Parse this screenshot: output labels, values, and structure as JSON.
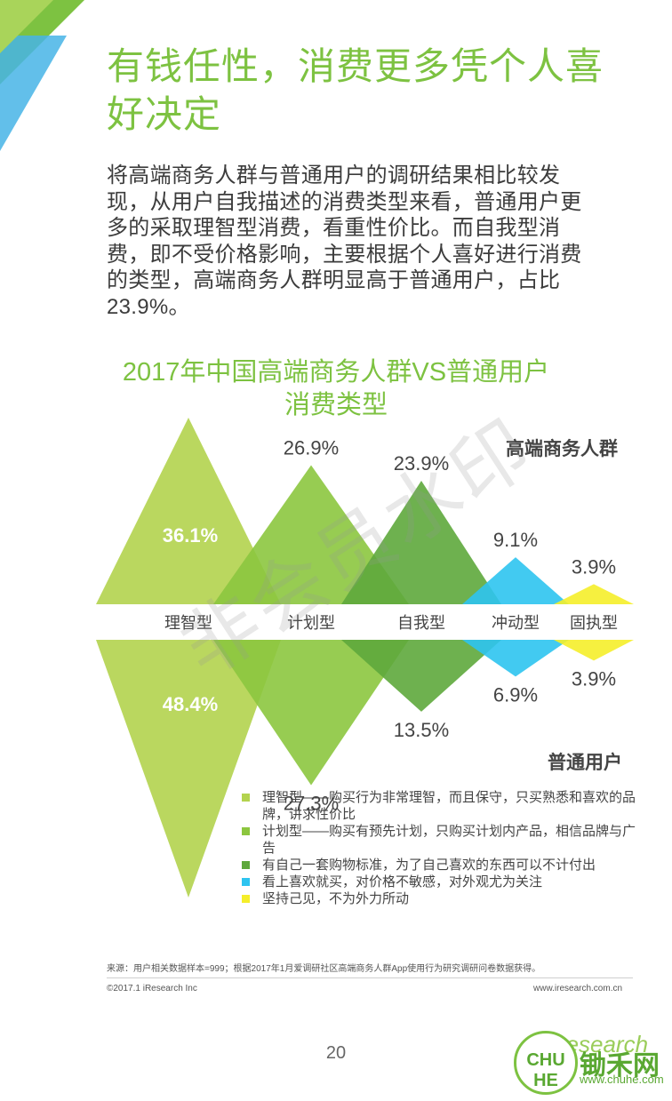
{
  "page": {
    "title_line1": "有钱任性，消费更多凭个人喜",
    "title_line2": "好决定",
    "intro_lines": [
      "将高端商务人群与普通用户的调研结果相比较发",
      "现，从用户自我描述的消费类型来看，普通用户更",
      "多的采取理智型消费，看重性价比。而自我型消",
      "费，即不受价格影响，主要根据个人喜好进行消费",
      "的类型，高端商务人群明显高于普通用户，占比",
      "23.9%。"
    ],
    "watermark": "非会员水印",
    "source": "来源：用户相关数据样本=999；根据2017年1月爱调研社区高端商务人群App使用行为研究调研问卷数据获得。",
    "copyright": "©2017.1 iResearch Inc",
    "website": "www.iresearch.com.cn",
    "page_number": "20",
    "brand": "iResearch",
    "logo_seal": "CHU HE",
    "logo_name": "锄禾网",
    "logo_url": "www.chuhe.com"
  },
  "chart_data": {
    "type": "bar",
    "title_line1": "2017年中国高端商务人群VS普通用户",
    "title_line2": "消费类型",
    "categories": [
      "理智型",
      "计划型",
      "自我型",
      "冲动型",
      "固执型"
    ],
    "colors": [
      "#b3d34e",
      "#8cc63f",
      "#5ea83c",
      "#2ec4f0",
      "#f5ee2a"
    ],
    "series": [
      {
        "name": "高端商务人群",
        "values": [
          36.1,
          26.9,
          23.9,
          9.1,
          3.9
        ],
        "labels": [
          "36.1%",
          "26.9%",
          "23.9%",
          "9.1%",
          "3.9%"
        ]
      },
      {
        "name": "普通用户",
        "values": [
          48.4,
          27.3,
          13.5,
          6.9,
          3.9
        ],
        "labels": [
          "48.4%",
          "27.3%",
          "13.5%",
          "6.9%",
          "3.9%"
        ]
      }
    ],
    "legend": [
      {
        "text": "理智型——购买行为非常理智，而且保守，只买熟悉和喜欢的品牌，讲求性价比",
        "color": "#b3d34e"
      },
      {
        "text": "计划型——购买有预先计划，只购买计划内产品，相信品牌与广告",
        "color": "#8cc63f"
      },
      {
        "text": "有自己一套购物标准，为了自己喜欢的东西可以不计付出",
        "color": "#5ea83c"
      },
      {
        "text": "看上喜欢就买，对价格不敏感，对外观尤为关注",
        "color": "#2ec4f0"
      },
      {
        "text": "坚持己见，不为外力所动",
        "color": "#f5ee2a"
      }
    ]
  }
}
